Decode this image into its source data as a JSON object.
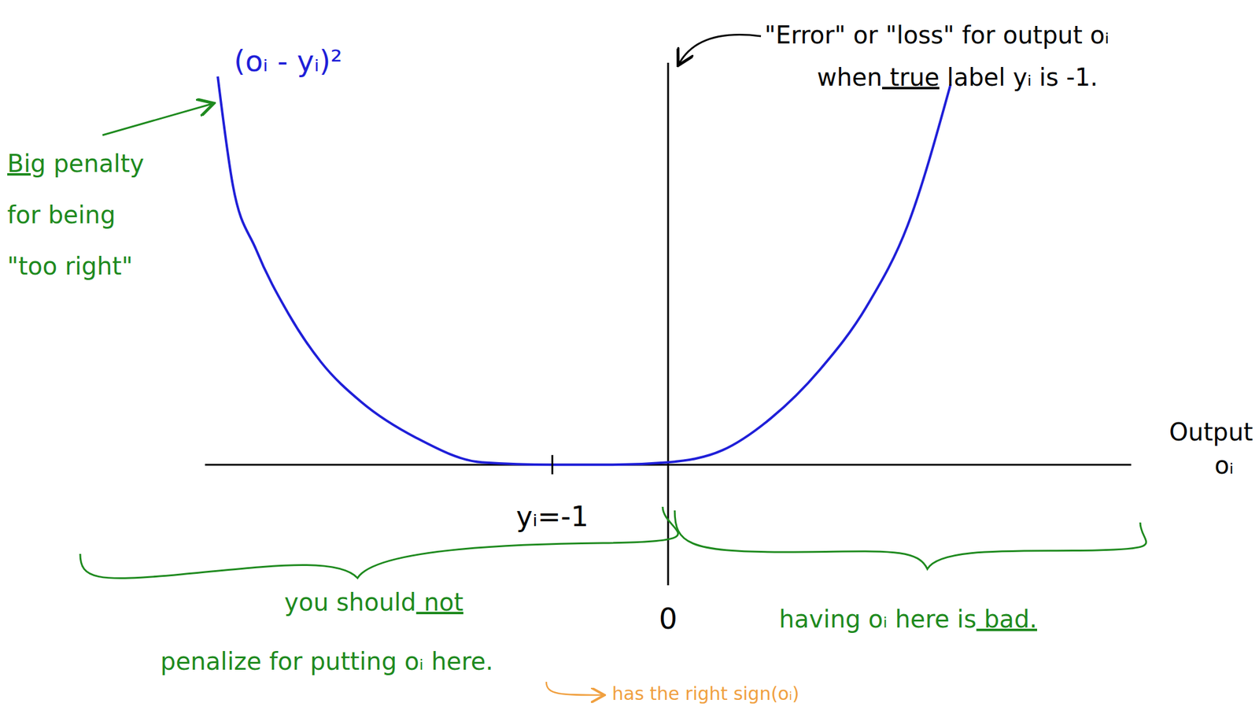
{
  "chart_data": {
    "type": "line",
    "x": [
      -3.89,
      -3.76,
      -3.56,
      -3.28,
      -3.0,
      -2.65,
      -2.17,
      -1.61,
      -1.0,
      -0.5,
      0.0,
      0.47,
      0.89,
      1.31,
      1.72,
      2.07,
      2.44
    ],
    "values": [
      9.66,
      6.96,
      5.36,
      3.76,
      2.56,
      1.56,
      0.66,
      0.06,
      0.0,
      0.0,
      0.06,
      0.36,
      1.16,
      2.36,
      3.96,
      5.96,
      9.46
    ],
    "color": "#1f1fd8",
    "xlim": [
      -4,
      4
    ],
    "ylim": [
      -3,
      10
    ],
    "xticks": [
      {
        "value": -1,
        "label": "yᵢ=-1"
      },
      {
        "value": 0,
        "label": "0"
      }
    ],
    "tick_labels": "x",
    "xlabel": [
      "Output",
      "oᵢ"
    ],
    "annotations": [
      [
        "\"Error\" or \"loss\" for output oᵢ",
        "when true label yᵢ is -1."
      ],
      [
        "(oᵢ - yᵢ)²"
      ],
      [
        "Big penalty",
        "for being",
        "\"too right\""
      ],
      [
        "you should not",
        "penalize for putting oᵢ here."
      ],
      [
        "having oᵢ here is bad."
      ],
      [
        "has the right sign(oᵢ)"
      ]
    ]
  }
}
